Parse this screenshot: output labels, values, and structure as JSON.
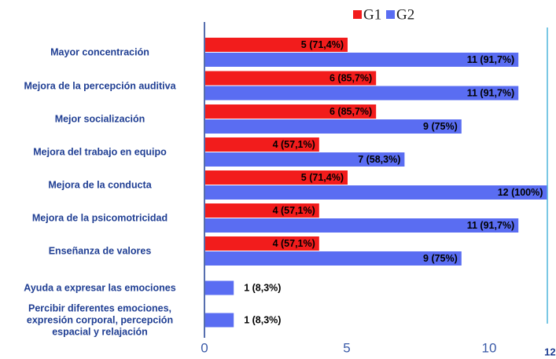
{
  "chart_data": {
    "type": "bar",
    "orientation": "horizontal",
    "categories": [
      "Mayor concentración",
      "Mejora de la percepción auditiva",
      "Mejor socialización",
      "Mejora del trabajo en equipo",
      "Mejora de la conducta",
      "Mejora de la psicomotricidad",
      "Enseñanza de valores",
      "Ayuda a expresar las emociones",
      "Percibir diferentes emociones,\nexpresión corporal, percepción\nespacial y relajación"
    ],
    "series": [
      {
        "name": "G1",
        "color": "#f21c1c",
        "values": [
          5,
          6,
          6,
          4,
          5,
          4,
          4,
          null,
          null
        ],
        "value_labels": [
          "5 (71,4%)",
          "6 (85,7%)",
          "6 (85,7%)",
          "4 (57,1%)",
          "5 (71,4%)",
          "4 (57,1%)",
          "4 (57,1%)",
          null,
          null
        ]
      },
      {
        "name": "G2",
        "color": "#5a6df2",
        "values": [
          11,
          11,
          9,
          7,
          12,
          11,
          9,
          1,
          1
        ],
        "value_labels": [
          "11 (91,7%)",
          "11 (91,7%)",
          "9 (75%)",
          "7 (58,3%)",
          "12 (100%)",
          "11 (91,7%)",
          "9 (75%)",
          "1 (8,3%)",
          "1 (8,3%)"
        ]
      }
    ],
    "xlim": [
      0,
      12
    ],
    "xticks": [
      0,
      5,
      10,
      12
    ],
    "legend": "top"
  }
}
